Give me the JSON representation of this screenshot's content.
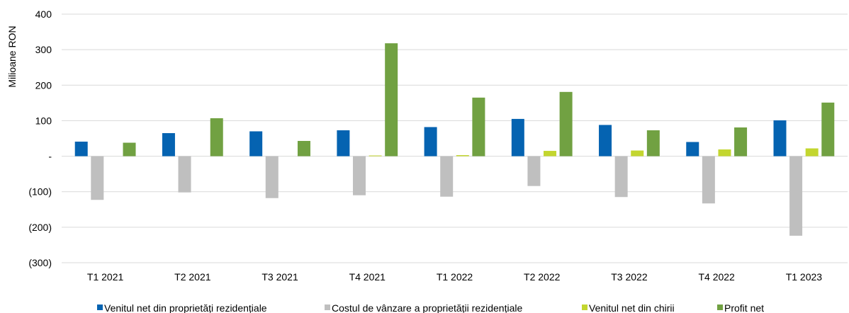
{
  "chart_data": {
    "type": "bar",
    "title": "",
    "xlabel": "",
    "ylabel": "Milioane RON",
    "ylim": [
      -300,
      400
    ],
    "yticks": [
      {
        "value": 400,
        "label": "400"
      },
      {
        "value": 300,
        "label": "300"
      },
      {
        "value": 200,
        "label": "200"
      },
      {
        "value": 100,
        "label": "100"
      },
      {
        "value": 0,
        "label": "-"
      },
      {
        "value": -100,
        "label": "(100)"
      },
      {
        "value": -200,
        "label": "(200)"
      },
      {
        "value": -300,
        "label": "(300)"
      }
    ],
    "grid": true,
    "legend_position": "bottom",
    "categories": [
      "T1 2021",
      "T2 2021",
      "T3 2021",
      "T4 2021",
      "T1 2022",
      "T2 2022",
      "T3 2022",
      "T4 2022",
      "T1 2023"
    ],
    "series": [
      {
        "name": "Venitul net din proprietăți rezidențiale",
        "color": "#0563b1",
        "values": [
          41,
          65,
          70,
          73,
          82,
          105,
          88,
          40,
          101
        ]
      },
      {
        "name": "Costul de vânzare a proprietății rezidențiale",
        "color": "#bfbfbf",
        "values": [
          -123,
          -102,
          -118,
          -110,
          -114,
          -84,
          -115,
          -133,
          -224
        ]
      },
      {
        "name": "Venitul net din chirii",
        "color": "#c3d62f",
        "values": [
          0,
          0,
          0,
          2,
          3,
          15,
          16,
          19,
          22
        ]
      },
      {
        "name": "Profit net",
        "color": "#71a142",
        "values": [
          38,
          107,
          43,
          318,
          165,
          181,
          73,
          81,
          151
        ]
      }
    ]
  }
}
